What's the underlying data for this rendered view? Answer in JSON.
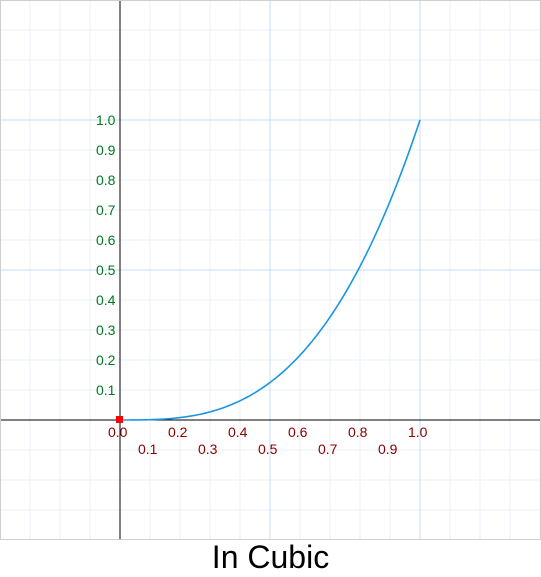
{
  "caption": "In Cubic",
  "colors": {
    "curve": "#1a96e0",
    "x_labels": "#8b0000",
    "y_labels": "#007a20",
    "axis": "#000000",
    "grid_minor": "#e8f1f8",
    "grid_major": "#c6ddf0",
    "origin_marker": "#ff0000"
  },
  "chart_data": {
    "type": "line",
    "function": "y = x^3",
    "title": "In Cubic",
    "xlim": [
      -0.4,
      1.4
    ],
    "ylim": [
      -0.4,
      1.4
    ],
    "x_ticks": [
      "0.0",
      "0.1",
      "0.2",
      "0.3",
      "0.4",
      "0.5",
      "0.6",
      "0.7",
      "0.8",
      "0.9",
      "1.0"
    ],
    "y_ticks": [
      "0.1",
      "0.2",
      "0.3",
      "0.4",
      "0.5",
      "0.6",
      "0.7",
      "0.8",
      "0.9",
      "1.0"
    ],
    "grid": true,
    "series": [
      {
        "x": [
          0.0,
          0.1,
          0.2,
          0.3,
          0.4,
          0.5,
          0.6,
          0.7,
          0.8,
          0.9,
          1.0
        ],
        "y": [
          0.0,
          0.001,
          0.008,
          0.027,
          0.064,
          0.125,
          0.216,
          0.343,
          0.512,
          0.729,
          1.0
        ]
      }
    ]
  }
}
